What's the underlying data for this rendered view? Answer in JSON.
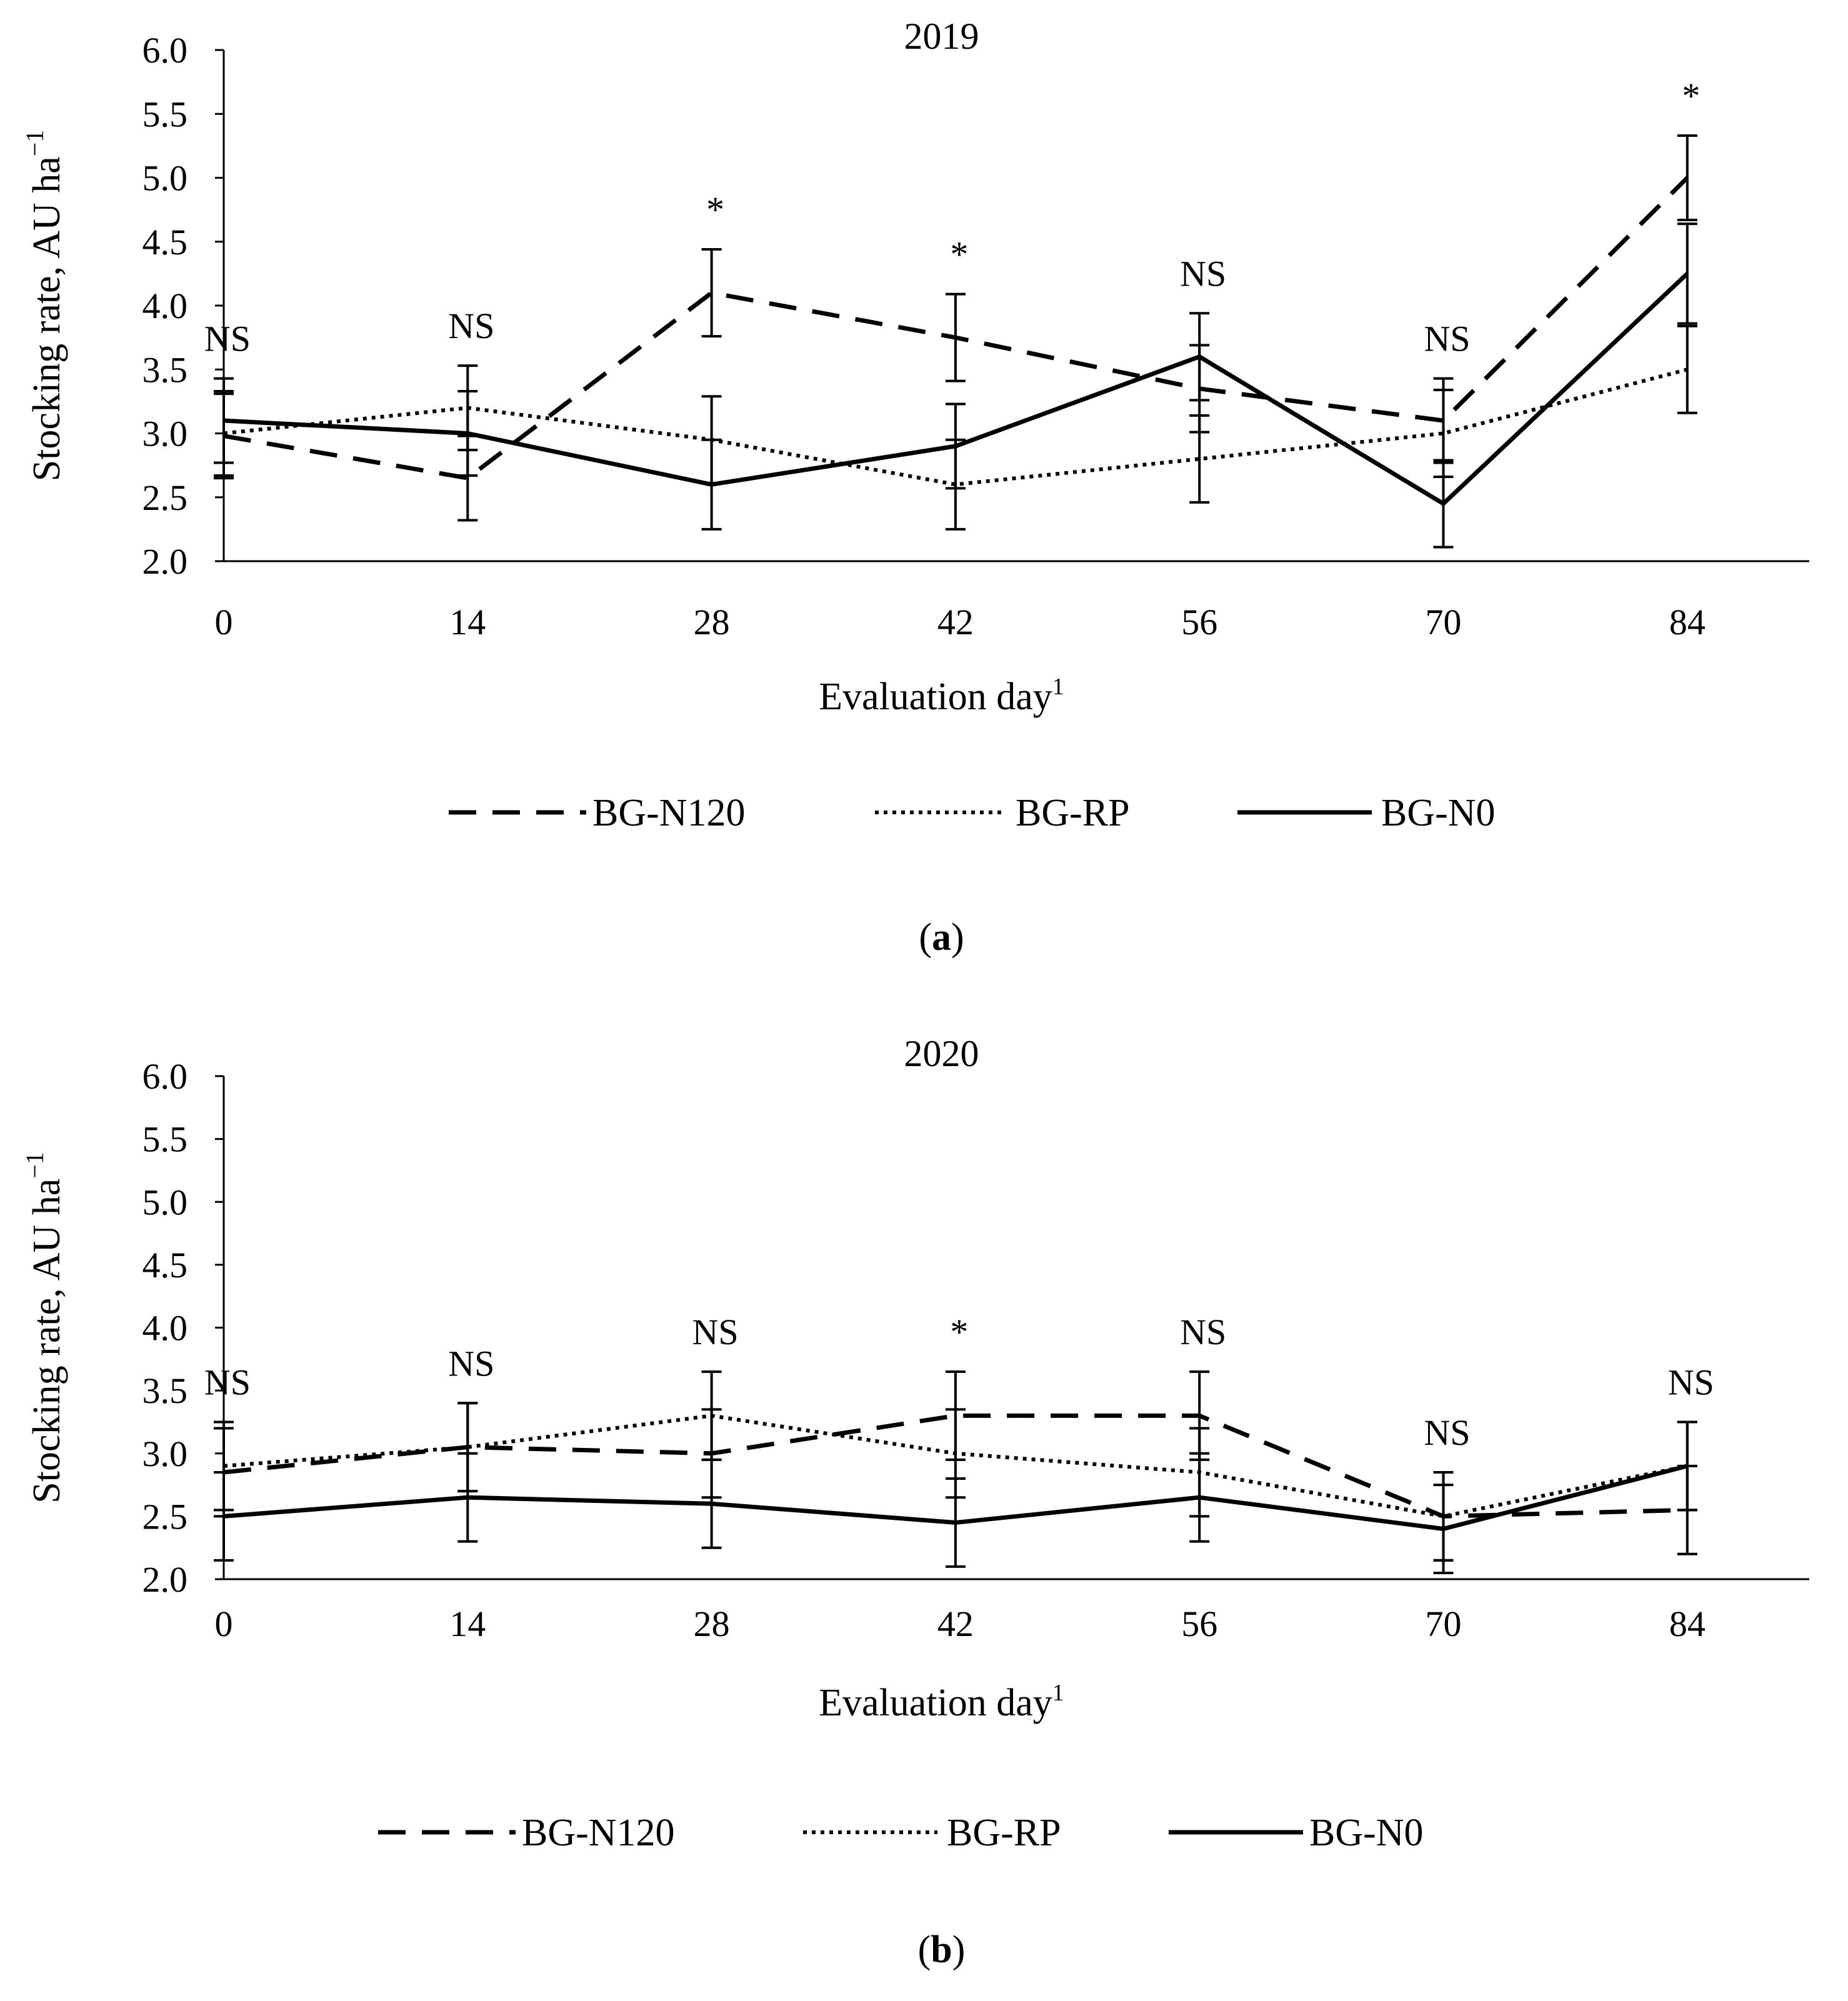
{
  "chart_data": [
    {
      "type": "line",
      "title": "2019",
      "xlabel": "Evaluation day",
      "xlabel_sup": "1",
      "ylabel": "Stocking rate, AU ha",
      "ylabel_sup": "−1",
      "x": [
        0,
        14,
        28,
        42,
        56,
        70,
        84
      ],
      "x_ticks": [
        "0",
        "14",
        "28",
        "42",
        "56",
        "70",
        "84"
      ],
      "y_ticks": [
        "2.0",
        "2.5",
        "3.0",
        "3.5",
        "4.0",
        "4.5",
        "5.0",
        "5.5",
        "6.0"
      ],
      "ylim": [
        2.0,
        6.0
      ],
      "grid": false,
      "legend_position": "bottom",
      "panel_label": "a",
      "significance": [
        "NS",
        "NS",
        "*",
        "*",
        "NS",
        "NS",
        "*"
      ],
      "series": [
        {
          "name": "BG-N120",
          "style": "dashed",
          "values": [
            2.98,
            2.65,
            4.1,
            3.75,
            3.35,
            3.1,
            5.0
          ],
          "error": [
            0.33,
            0.33,
            0.34,
            0.34,
            0.34,
            0.33,
            0.33
          ]
        },
        {
          "name": "BG-RP",
          "style": "dotted",
          "values": [
            3.0,
            3.2,
            2.95,
            2.6,
            2.8,
            3.0,
            3.5
          ],
          "error": [
            0.33,
            0.33,
            0.34,
            0.35,
            0.34,
            0.34,
            0.34
          ]
        },
        {
          "name": "BG-N0",
          "style": "solid",
          "values": [
            3.1,
            3.0,
            2.6,
            2.9,
            3.6,
            2.45,
            4.25
          ],
          "error": [
            0.33,
            0.33,
            0.35,
            0.33,
            0.34,
            0.34,
            0.39
          ]
        }
      ]
    },
    {
      "type": "line",
      "title": "2020",
      "xlabel": "Evaluation day",
      "xlabel_sup": "1",
      "ylabel": "Stocking rate, AU ha",
      "ylabel_sup": "−1",
      "x": [
        0,
        14,
        28,
        42,
        56,
        70,
        84
      ],
      "x_ticks": [
        "0",
        "14",
        "28",
        "42",
        "56",
        "70",
        "84"
      ],
      "y_ticks": [
        "2.0",
        "2.5",
        "3.0",
        "3.5",
        "4.0",
        "4.5",
        "5.0",
        "5.5",
        "6.0"
      ],
      "ylim": [
        2.0,
        6.0
      ],
      "grid": false,
      "legend_position": "bottom",
      "panel_label": "b",
      "significance": [
        "NS",
        "NS",
        "NS",
        "*",
        "NS",
        "NS",
        "NS"
      ],
      "series": [
        {
          "name": "BG-N120",
          "style": "dashed",
          "values": [
            2.85,
            3.05,
            3.0,
            3.3,
            3.3,
            2.5,
            2.55
          ],
          "error": [
            0.35,
            0.35,
            0.35,
            0.35,
            0.35,
            0.35,
            0.35
          ]
        },
        {
          "name": "BG-RP",
          "style": "dotted",
          "values": [
            2.9,
            3.05,
            3.3,
            3.0,
            2.85,
            2.5,
            2.9
          ],
          "error": [
            0.35,
            0.35,
            0.35,
            0.35,
            0.35,
            0.35,
            0.35
          ]
        },
        {
          "name": "BG-N0",
          "style": "solid",
          "values": [
            2.5,
            2.65,
            2.6,
            2.45,
            2.65,
            2.4,
            2.9
          ],
          "error": [
            0.35,
            0.35,
            0.35,
            0.35,
            0.35,
            0.35,
            0.35
          ]
        }
      ]
    }
  ]
}
